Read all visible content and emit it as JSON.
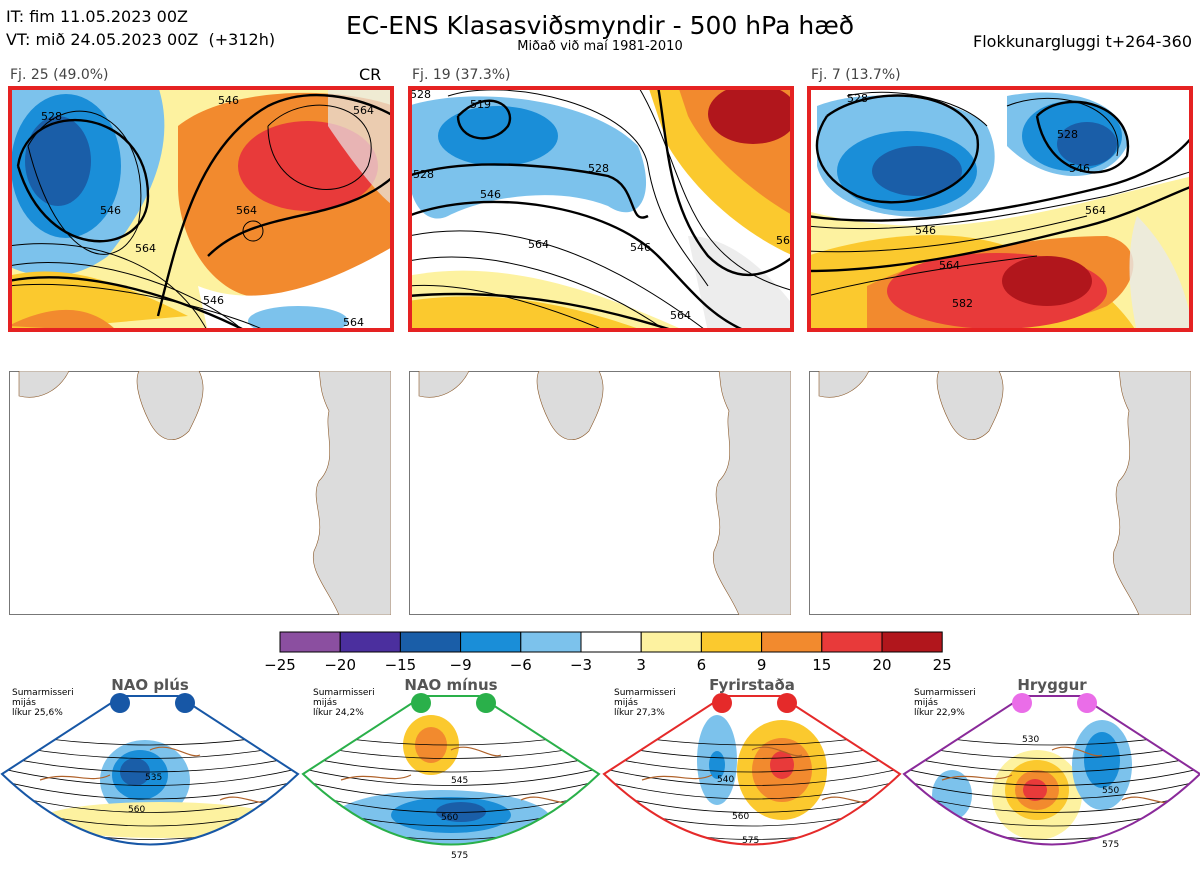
{
  "header": {
    "it": "IT: fim 11.05.2023 00Z",
    "vt": "VT: mið 24.05.2023 00Z  (+312h)",
    "title": "EC-ENS Klasasviðsmyndir - 500 hPa hæð",
    "subtitle": "Miðað við maí 1981-2010",
    "window": "Flokkunargluggi t+264-360"
  },
  "clusters": [
    {
      "label": "Fj. 25 (49.0%)",
      "tag": "CR",
      "contours": [
        "528",
        "546",
        "546",
        "564",
        "564",
        "546",
        "564",
        "564"
      ]
    },
    {
      "label": "Fj. 19 (37.3%)",
      "tag": "",
      "contours": [
        "528",
        "519",
        "528",
        "528",
        "546",
        "546",
        "564",
        "564",
        "56"
      ]
    },
    {
      "label": "Fj. 7 (13.7%)",
      "tag": "",
      "contours": [
        "528",
        "528",
        "546",
        "564",
        "546",
        "564",
        "582"
      ]
    }
  ],
  "colorbar": {
    "ticks": [
      "−25",
      "−20",
      "−15",
      "−9",
      "−6",
      "−3",
      "3",
      "6",
      "9",
      "15",
      "20",
      "25"
    ],
    "colors": [
      "#8b4fa0",
      "#4b2f9e",
      "#1a5ea8",
      "#1a8ed8",
      "#7cc2ec",
      "#ffffff",
      "#fdf2a0",
      "#fbc92e",
      "#f28a2e",
      "#e83a3a",
      "#b1161c"
    ]
  },
  "regimes": [
    {
      "name": "NAO plús",
      "info": "Sumarmisseri\nmijás\nlíkur 25,6%",
      "dot_color": "#1757a6",
      "frame_color": "#1757a6",
      "labels": [
        "535",
        "560"
      ]
    },
    {
      "name": "NAO mínus",
      "info": "Sumarmisseri\nmijás\nlíkur 24,2%",
      "dot_color": "#2ab04a",
      "frame_color": "#2ab04a",
      "labels": [
        "545",
        "560",
        "575"
      ]
    },
    {
      "name": "Fyrirstaða",
      "info": "Sumarmisseri\nmijás\nlíkur 27,3%",
      "dot_color": "#e52a2a",
      "frame_color": "#e52a2a",
      "labels": [
        "540",
        "560",
        "575"
      ]
    },
    {
      "name": "Hryggur",
      "info": "Sumarmisseri\nmijás\nlíkur 22,9%",
      "dot_color": "#ea6de8",
      "frame_color": "#8a2a9a",
      "labels": [
        "530",
        "550",
        "575"
      ]
    }
  ]
}
